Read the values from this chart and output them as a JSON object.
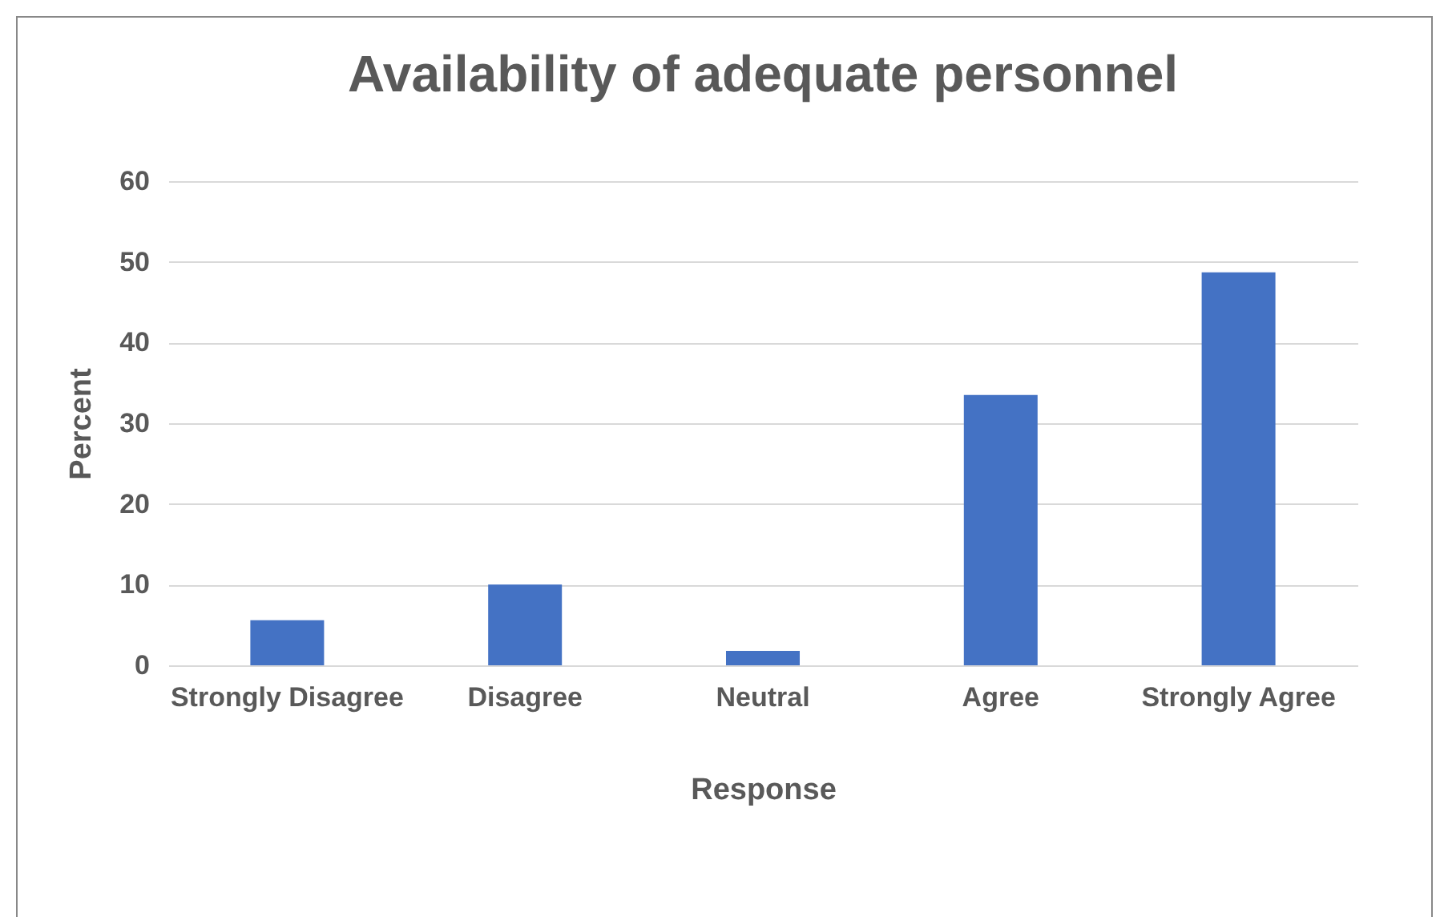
{
  "chart_data": {
    "type": "bar",
    "title": "Availability of adequate personnel",
    "xlabel": "Response",
    "ylabel": "Percent",
    "categories": [
      "Strongly Disagree",
      "Disagree",
      "Neutral",
      "Agree",
      "Strongly Agree"
    ],
    "values": [
      5.6,
      10.0,
      1.8,
      33.5,
      48.7
    ],
    "color": "#4472c4",
    "ylim": [
      0,
      60
    ],
    "yticks": [
      0,
      10,
      20,
      30,
      40,
      50,
      60
    ],
    "grid": "y"
  }
}
